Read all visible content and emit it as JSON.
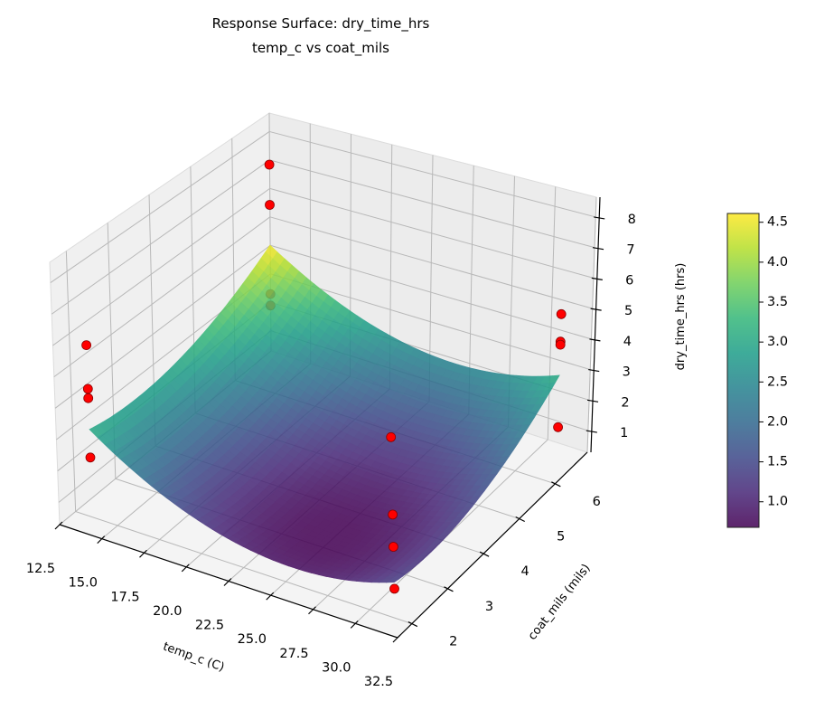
{
  "chart_data": {
    "type": "surface",
    "title": "Response Surface: dry_time_hrs",
    "subtitle": "temp_c vs coat_mils",
    "xlabel": "temp_c (C)",
    "ylabel": "coat_mils (mils)",
    "zlabel": "dry_time_hrs (hrs)",
    "xlim": [
      12.5,
      32.5
    ],
    "ylim": [
      1.6,
      6.9
    ],
    "zlim": [
      0.29,
      8.65
    ],
    "xticks": [
      12.5,
      15.0,
      17.5,
      20.0,
      22.5,
      25.0,
      27.5,
      30.0,
      32.5
    ],
    "yticks": [
      2,
      3,
      4,
      5,
      6
    ],
    "zticks": [
      1,
      2,
      3,
      4,
      5,
      6,
      7,
      8
    ],
    "grid": true,
    "colormap": "viridis",
    "colorbar": {
      "range": [
        0.68,
        4.61
      ],
      "ticks": [
        1.0,
        1.5,
        2.0,
        2.5,
        3.0,
        3.5,
        4.0,
        4.5
      ],
      "position": "right"
    },
    "surface": {
      "x": [
        13.5,
        18.0,
        22.5,
        27.0,
        31.5
      ],
      "y": [
        2.0,
        3.125,
        4.25,
        5.375,
        6.5
      ],
      "z": [
        [
          3.1,
          2.91,
          3.1,
          3.66,
          4.6
        ],
        [
          1.7,
          1.53,
          1.73,
          2.3,
          3.25
        ],
        [
          0.95,
          0.79,
          1.0,
          1.59,
          2.55
        ],
        [
          0.85,
          0.7,
          0.93,
          1.53,
          2.5
        ],
        [
          1.4,
          1.26,
          1.5,
          2.11,
          3.1
        ]
      ]
    },
    "points": {
      "color": "#ff0000",
      "data": [
        [
          13.5,
          2.0,
          5.8
        ],
        [
          13.5,
          2.0,
          4.4
        ],
        [
          13.5,
          2.0,
          4.1
        ],
        [
          13.5,
          2.0,
          2.2
        ],
        [
          13.5,
          6.5,
          7.4
        ],
        [
          13.5,
          6.5,
          6.0
        ],
        [
          13.5,
          6.5,
          2.9
        ],
        [
          13.5,
          6.5,
          2.5
        ],
        [
          31.5,
          2.0,
          5.9
        ],
        [
          31.5,
          2.0,
          3.5
        ],
        [
          31.5,
          2.0,
          2.5
        ],
        [
          31.5,
          2.0,
          1.2
        ],
        [
          31.5,
          6.5,
          5.1
        ],
        [
          31.5,
          6.5,
          4.2
        ],
        [
          31.5,
          6.5,
          4.1
        ],
        [
          31.5,
          6.5,
          1.4
        ]
      ]
    }
  }
}
